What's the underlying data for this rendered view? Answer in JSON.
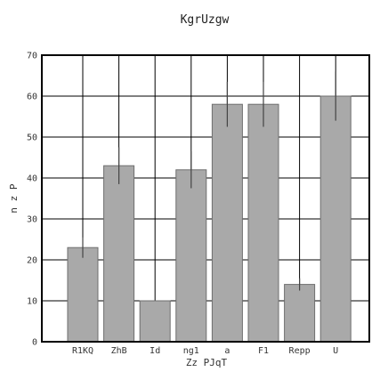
{
  "chart_data": {
    "type": "bar",
    "title": "KgrUzgw",
    "xlabel": "Zz PJqT",
    "ylabel": "n z P",
    "categories": [
      "R1KQ",
      "ZhB",
      "Id",
      "ng1",
      "a",
      "F1",
      "Repp",
      "U"
    ],
    "values": [
      23,
      43,
      10,
      42,
      58,
      58,
      14,
      60
    ],
    "errors": [
      2.5,
      4.5,
      0,
      4.5,
      5.5,
      5.5,
      1.5,
      6
    ],
    "ylim": [
      0,
      70
    ],
    "yticks": [
      0,
      10,
      20,
      30,
      40,
      50,
      60,
      70
    ],
    "grid": true,
    "bar_color": "#a9a9a9",
    "bar_edge_color": "#6e6e6e"
  }
}
